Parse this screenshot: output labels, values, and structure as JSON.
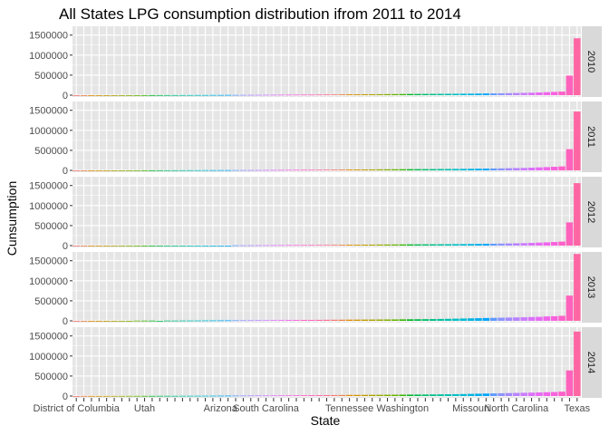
{
  "chart_data": {
    "type": "bar",
    "title": "All States LPG consumption distribution ifrom 2011 to 2014",
    "xlabel": "State",
    "ylabel": "Cunsumption",
    "ylim": [
      0,
      1720000
    ],
    "yticks": [
      0,
      500000,
      1000000,
      1500000
    ],
    "ytick_labels": [
      "0",
      "500000",
      "1000000",
      "1500000"
    ],
    "categories": [
      "District of Columbia",
      "",
      "",
      "",
      "",
      "",
      "",
      "",
      "",
      "Utah",
      "",
      "",
      "",
      "",
      "",
      "",
      "",
      "",
      "",
      "Arizona",
      "",
      "",
      "",
      "",
      "",
      "South Carolina",
      "",
      "",
      "",
      "",
      "",
      "",
      "",
      "",
      "",
      "",
      "Tennessee",
      "",
      "",
      "",
      "",
      "",
      "",
      "Washington",
      "",
      "",
      "",
      "",
      "",
      "",
      "",
      "",
      "Missouri",
      "",
      "",
      "",
      "",
      "",
      "North Carolina",
      "",
      "",
      "",
      "",
      "",
      "",
      "",
      "Texas"
    ],
    "x_tick_labels": [
      {
        "index": 0,
        "label": "District of Columbia"
      },
      {
        "index": 9,
        "label": "Utah"
      },
      {
        "index": 19,
        "label": "Arizona"
      },
      {
        "index": 25,
        "label": "South Carolina"
      },
      {
        "index": 36,
        "label": "Tennessee"
      },
      {
        "index": 43,
        "label": "Washington"
      },
      {
        "index": 52,
        "label": "Missouri"
      },
      {
        "index": 58,
        "label": "North Carolina"
      },
      {
        "index": 66,
        "label": "Texas"
      }
    ],
    "grid": true,
    "legend": "none",
    "panel_background": "#e5e5e5",
    "grid_color": "#ffffff",
    "strip_background": "#d9d9d9",
    "panels": [
      {
        "label": "2010",
        "values": [
          -6000,
          -6000,
          -6000,
          -6000,
          -6000,
          -6000,
          -6000,
          -6000,
          1000,
          1500,
          2000,
          2500,
          3000,
          3000,
          3500,
          4000,
          5000,
          5000,
          6000,
          6000,
          7000,
          7000,
          8000,
          8500,
          9000,
          10000,
          11000,
          12000,
          13000,
          14000,
          15000,
          15000,
          16000,
          17000,
          18000,
          19000,
          20000,
          21000,
          22000,
          23000,
          24000,
          26000,
          27000,
          28000,
          29000,
          30000,
          31000,
          32000,
          33000,
          34000,
          35000,
          37000,
          38000,
          40000,
          42000,
          44000,
          47000,
          50000,
          54000,
          58000,
          62000,
          68000,
          75000,
          82000,
          90000,
          490000,
          1420000
        ]
      },
      {
        "label": "2011",
        "values": [
          -6000,
          -6000,
          -6000,
          -6000,
          -6000,
          -6000,
          -6000,
          1000,
          1500,
          2000,
          2500,
          3000,
          3000,
          3500,
          4000,
          5000,
          5000,
          6000,
          6000,
          7000,
          7000,
          8000,
          8500,
          9000,
          10000,
          11000,
          12000,
          13000,
          14000,
          15000,
          15000,
          16000,
          17000,
          18000,
          19000,
          20000,
          21000,
          22000,
          23000,
          24000,
          26000,
          27000,
          28000,
          29000,
          30000,
          31000,
          32000,
          33000,
          34000,
          35000,
          37000,
          38000,
          40000,
          42000,
          44000,
          47000,
          50000,
          54000,
          58000,
          62000,
          68000,
          75000,
          82000,
          90000,
          100000,
          530000,
          1470000
        ]
      },
      {
        "label": "2012",
        "values": [
          -6000,
          -6000,
          -6000,
          -6000,
          -6000,
          -6000,
          -6000,
          -6000,
          -6000,
          -6000,
          -6000,
          -6000,
          -6000,
          -6000,
          -6000,
          -6000,
          -6000,
          -6000,
          -6000,
          -6000,
          -6000,
          8000,
          8500,
          9000,
          10000,
          11000,
          12000,
          13000,
          14000,
          15000,
          15000,
          16000,
          17000,
          18000,
          19000,
          20000,
          21000,
          22000,
          23000,
          24000,
          26000,
          27000,
          28000,
          29000,
          30000,
          31000,
          32000,
          33000,
          34000,
          35000,
          37000,
          38000,
          40000,
          42000,
          44000,
          47000,
          50000,
          54000,
          58000,
          62000,
          68000,
          75000,
          82000,
          90000,
          100000,
          580000,
          1560000
        ]
      },
      {
        "label": "2013",
        "values": [
          -6000,
          -6000,
          -6000,
          -6000,
          -6000,
          -6000,
          -6000,
          -6000,
          6000,
          6000,
          6000,
          -6000,
          7000,
          7000,
          8000,
          8500,
          9000,
          10000,
          11000,
          12000,
          13000,
          14000,
          15000,
          15000,
          16000,
          17000,
          18000,
          19000,
          20000,
          21000,
          22000,
          23000,
          24000,
          26000,
          27000,
          28000,
          29000,
          30000,
          31000,
          32000,
          33000,
          34000,
          35000,
          37000,
          38000,
          40000,
          42000,
          44000,
          47000,
          50000,
          54000,
          58000,
          62000,
          66000,
          70000,
          74000,
          78000,
          82000,
          86000,
          90000,
          95000,
          100000,
          110000,
          115000,
          125000,
          630000,
          1670000
        ]
      },
      {
        "label": "2014",
        "values": [
          -6000,
          3000,
          3000,
          3000,
          4000,
          4000,
          4000,
          5000,
          5000,
          5000,
          5000,
          6000,
          6000,
          6000,
          7000,
          7000,
          8000,
          8500,
          9000,
          10000,
          11000,
          12000,
          13000,
          14000,
          15000,
          15000,
          16000,
          17000,
          18000,
          19000,
          20000,
          21000,
          22000,
          23000,
          24000,
          26000,
          27000,
          28000,
          29000,
          30000,
          31000,
          32000,
          33000,
          34000,
          35000,
          37000,
          38000,
          40000,
          42000,
          44000,
          47000,
          50000,
          54000,
          58000,
          62000,
          66000,
          70000,
          74000,
          78000,
          82000,
          86000,
          90000,
          95000,
          100000,
          110000,
          640000,
          1610000
        ]
      }
    ],
    "colors": [
      "#F8766D",
      "#EE8043",
      "#E18A00",
      "#D19300",
      "#C09B00",
      "#AEA200",
      "#99A800",
      "#82AD00",
      "#66B200",
      "#39B600",
      "#00B81F",
      "#00BB4E",
      "#00BE6C",
      "#00C086",
      "#00C19C",
      "#00C0AF",
      "#00BFC4",
      "#00BBD4",
      "#00B5E2",
      "#00ADEE",
      "#00A5FF",
      "#5F9BFF",
      "#8C94FF",
      "#A58AFF",
      "#B983FF",
      "#CC7DFF",
      "#DB72FB",
      "#E76BF3",
      "#F066EA",
      "#F962DD",
      "#FF61C9",
      "#FF62BC",
      "#FF67A4",
      "#FF6C90"
    ]
  }
}
